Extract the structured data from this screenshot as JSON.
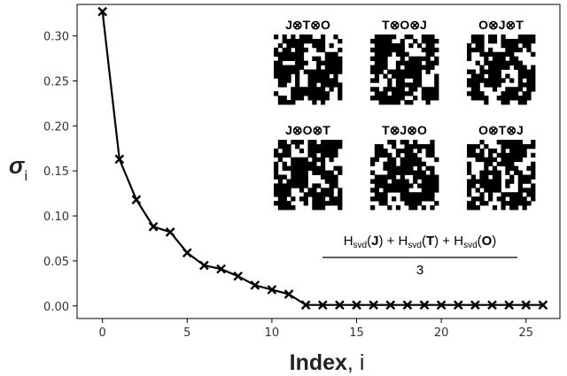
{
  "chart_data": {
    "type": "line",
    "xlabel": "Index, i",
    "xlabel_bold": "Index",
    "xlabel_rest": ", i",
    "ylabel_symbol": "σ",
    "ylabel_sub": "i",
    "xlim": [
      -1.5,
      27
    ],
    "ylim": [
      -0.014,
      0.335
    ],
    "xticks": [
      0,
      5,
      10,
      15,
      20,
      25
    ],
    "yticks": [
      0.0,
      0.05,
      0.1,
      0.15,
      0.2,
      0.25,
      0.3
    ],
    "xtick_labels": [
      "0",
      "5",
      "10",
      "15",
      "20",
      "25"
    ],
    "ytick_labels": [
      "0.00",
      "0.05",
      "0.10",
      "0.15",
      "0.20",
      "0.25",
      "0.30"
    ],
    "marker": "x",
    "series": [
      {
        "x": [
          0,
          1,
          2,
          3,
          4,
          5,
          6,
          7,
          8,
          9,
          10,
          11,
          12,
          13,
          14,
          15,
          16,
          17,
          18,
          19,
          20,
          21,
          22,
          23,
          24,
          25,
          26
        ],
        "values": [
          0.327,
          0.163,
          0.118,
          0.088,
          0.082,
          0.059,
          0.045,
          0.041,
          0.033,
          0.023,
          0.018,
          0.013,
          0.001,
          0.001,
          0.001,
          0.001,
          0.001,
          0.001,
          0.001,
          0.001,
          0.001,
          0.001,
          0.001,
          0.001,
          0.001,
          0.001,
          0.001
        ]
      }
    ]
  },
  "insets": [
    {
      "title": "J⊗T⊗O",
      "seed": 3
    },
    {
      "title": "T⊗O⊗J",
      "seed": 7
    },
    {
      "title": "O⊗J⊗T",
      "seed": 11
    },
    {
      "title": "J⊗O⊗T",
      "seed": 17
    },
    {
      "title": "T⊗J⊗O",
      "seed": 23
    },
    {
      "title": "O⊗T⊗J",
      "seed": 29
    }
  ],
  "formula": {
    "numerator_parts": [
      "H",
      "svd",
      "(",
      "J",
      ") + ",
      "H",
      "svd",
      "(",
      "T",
      ") + ",
      "H",
      "svd",
      "(",
      "O",
      ")"
    ],
    "denominator": "3"
  },
  "colors": {
    "line": "#000000",
    "pattern": "#000000",
    "background": "#ffffff"
  }
}
